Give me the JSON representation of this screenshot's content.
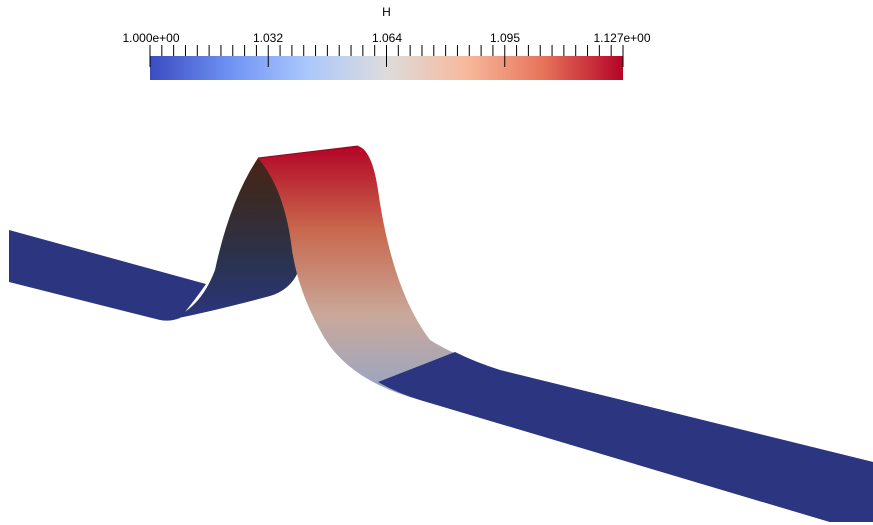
{
  "colorbar": {
    "title": "H",
    "labels": [
      "1.000e+00",
      "1.032",
      "1.064",
      "1.095",
      "1.127e+00"
    ],
    "range": [
      1.0,
      1.127
    ],
    "colormap": [
      "#3b4cc0",
      "#6f92f3",
      "#aac7fd",
      "#dddcdc",
      "#f7b89c",
      "#e7745b",
      "#b40426"
    ]
  },
  "surface": {
    "base_color": "#2b3580",
    "crest_color": "#b40426",
    "back_face_dark": "#1b1f2e"
  }
}
